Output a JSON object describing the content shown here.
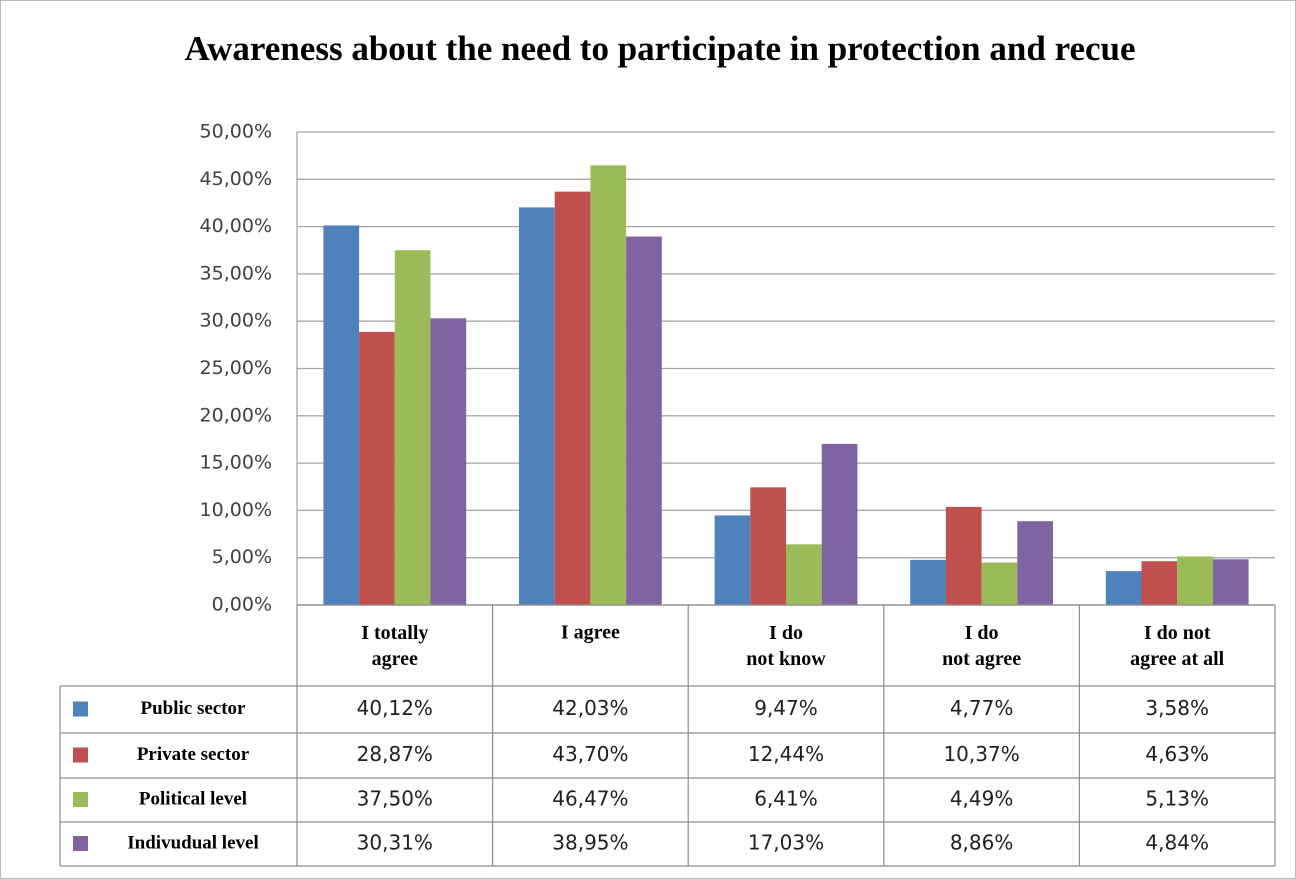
{
  "chart_data": {
    "type": "bar",
    "title": "Awareness about the need to participate in protection and recue",
    "categories": [
      "I totally\nagree",
      "I agree",
      "I do\nnot know",
      "I do\nnot agree",
      "I do not\nagree at all"
    ],
    "series": [
      {
        "name": "Public sector",
        "color": "#4f81bd",
        "values": [
          40.12,
          42.03,
          9.47,
          4.77,
          3.58
        ],
        "value_labels": [
          "40,12%",
          "42,03%",
          "9,47%",
          "4,77%",
          "3,58%"
        ]
      },
      {
        "name": "Private sector",
        "color": "#c0504d",
        "values": [
          28.87,
          43.7,
          12.44,
          10.37,
          4.63
        ],
        "value_labels": [
          "28,87%",
          "43,70%",
          "12,44%",
          "10,37%",
          "4,63%"
        ]
      },
      {
        "name": "Political level",
        "color": "#9bbb59",
        "values": [
          37.5,
          46.47,
          6.41,
          4.49,
          5.13
        ],
        "value_labels": [
          "37,50%",
          "46,47%",
          "6,41%",
          "4,49%",
          "5,13%"
        ]
      },
      {
        "name": "Indivudual level",
        "color": "#8064a2",
        "values": [
          30.31,
          38.95,
          17.03,
          8.86,
          4.84
        ],
        "value_labels": [
          "30,31%",
          "38,95%",
          "17,03%",
          "8,86%",
          "4,84%"
        ]
      }
    ],
    "ylim": [
      0,
      50
    ],
    "yticks": [
      {
        "value": 0,
        "label": "0,00%"
      },
      {
        "value": 5,
        "label": "5,00%"
      },
      {
        "value": 10,
        "label": "10,00%"
      },
      {
        "value": 15,
        "label": "15,00%"
      },
      {
        "value": 20,
        "label": "20,00%"
      },
      {
        "value": 25,
        "label": "25,00%"
      },
      {
        "value": 30,
        "label": "30,00%"
      },
      {
        "value": 35,
        "label": "35,00%"
      },
      {
        "value": 40,
        "label": "40,00%"
      },
      {
        "value": 45,
        "label": "45,00%"
      },
      {
        "value": 50,
        "label": "50,00%"
      }
    ],
    "grid": true
  }
}
